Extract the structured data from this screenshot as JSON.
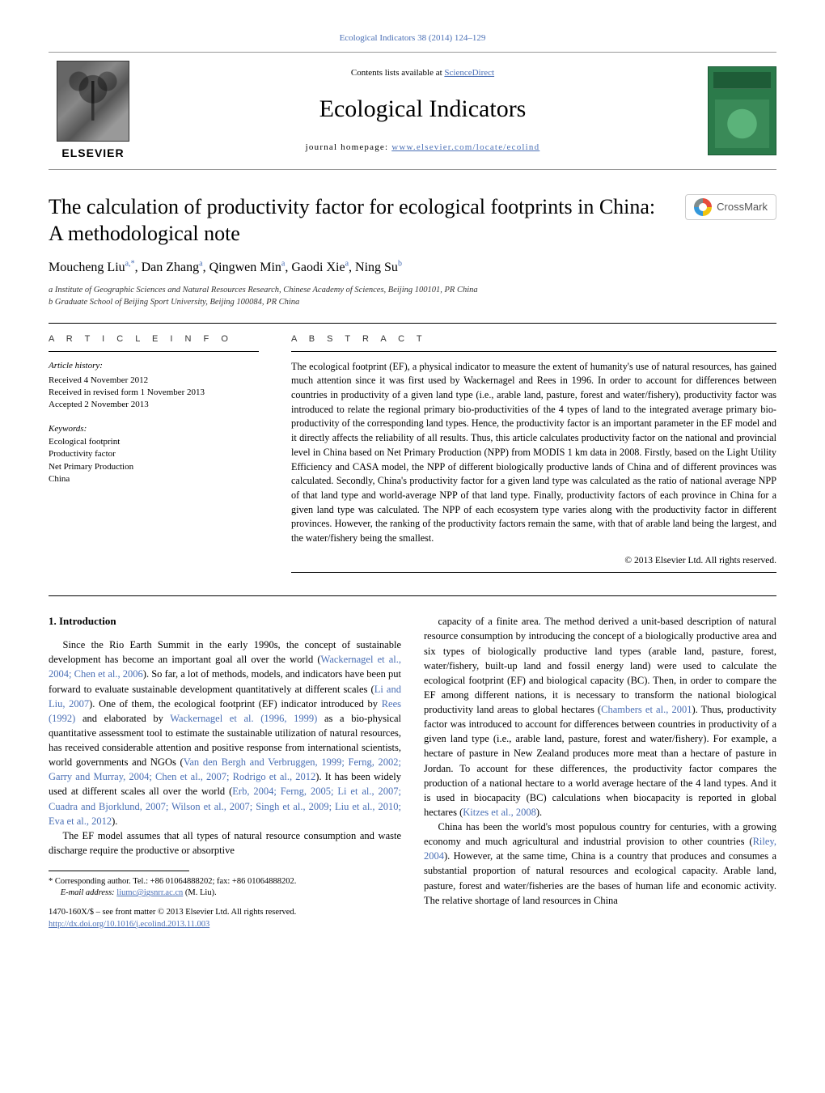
{
  "top_link": "Ecological Indicators 38 (2014) 124–129",
  "header": {
    "contents_prefix": "Contents lists available at ",
    "contents_link": "ScienceDirect",
    "journal_name": "Ecological Indicators",
    "homepage_prefix": "journal homepage: ",
    "homepage_link": "www.elsevier.com/locate/ecolind",
    "publisher": "ELSEVIER"
  },
  "crossmark_label": "CrossMark",
  "title": "The calculation of productivity factor for ecological footprints in China: A methodological note",
  "authors_html": "Moucheng Liu<sup>a,*</sup>, Dan Zhang<sup>a</sup>, Qingwen Min<sup>a</sup>, Gaodi Xie<sup>a</sup>, Ning Su<sup>b</sup>",
  "affiliations": [
    "a Institute of Geographic Sciences and Natural Resources Research, Chinese Academy of Sciences, Beijing 100101, PR China",
    "b Graduate School of Beijing Sport University, Beijing 100084, PR China"
  ],
  "info_label": "A R T I C L E   I N F O",
  "abstract_label": "A B S T R A C T",
  "history_label": "Article history:",
  "history": [
    "Received 4 November 2012",
    "Received in revised form 1 November 2013",
    "Accepted 2 November 2013"
  ],
  "keywords_label": "Keywords:",
  "keywords": [
    "Ecological footprint",
    "Productivity factor",
    "Net Primary Production",
    "China"
  ],
  "abstract": "The ecological footprint (EF), a physical indicator to measure the extent of humanity's use of natural resources, has gained much attention since it was first used by Wackernagel and Rees in 1996. In order to account for differences between countries in productivity of a given land type (i.e., arable land, pasture, forest and water/fishery), productivity factor was introduced to relate the regional primary bio-productivities of the 4 types of land to the integrated average primary bio-productivity of the corresponding land types. Hence, the productivity factor is an important parameter in the EF model and it directly affects the reliability of all results. Thus, this article calculates productivity factor on the national and provincial level in China based on Net Primary Production (NPP) from MODIS 1 km data in 2008. Firstly, based on the Light Utility Efficiency and CASA model, the NPP of different biologically productive lands of China and of different provinces was calculated. Secondly, China's productivity factor for a given land type was calculated as the ratio of national average NPP of that land type and world-average NPP of that land type. Finally, productivity factors of each province in China for a given land type was calculated. The NPP of each ecosystem type varies along with the productivity factor in different provinces. However, the ranking of the productivity factors remain the same, with that of arable land being the largest, and the water/fishery being the smallest.",
  "copyright": "© 2013 Elsevier Ltd. All rights reserved.",
  "intro_heading": "1. Introduction",
  "body": {
    "p1a": "Since the Rio Earth Summit in the early 1990s, the concept of sustainable development has become an important goal all over the world (",
    "c1": "Wackernagel et al., 2004; Chen et al., 2006",
    "p1b": "). So far, a lot of methods, models, and indicators have been put forward to evaluate sustainable development quantitatively at different scales (",
    "c2": "Li and Liu, 2007",
    "p1c": "). One of them, the ecological footprint (EF) indicator introduced by ",
    "c3": "Rees (1992)",
    "p1d": " and elaborated by ",
    "c4": "Wackernagel et al. (1996, 1999)",
    "p1e": " as a bio-physical quantitative assessment tool to estimate the sustainable utilization of natural resources, has received considerable attention and positive response from international scientists, world governments and NGOs (",
    "c5": "Van den Bergh and Verbruggen, 1999; Ferng, 2002; Garry and Murray, 2004; Chen et al., 2007; Rodrigo et al., 2012",
    "p1f": "). It has been widely used at different scales all over the world (",
    "c6": "Erb, 2004; Ferng, 2005; Li et al., 2007; Cuadra and Bjorklund, 2007; Wilson et al., 2007; Singh et al., 2009; Liu et al., 2010; Eva et al., 2012",
    "p1g": ").",
    "p2": "The EF model assumes that all types of natural resource consumption and waste discharge require the productive or absorptive",
    "p3a": "capacity of a finite area. The method derived a unit-based description of natural resource consumption by introducing the concept of a biologically productive area and six types of biologically productive land types (arable land, pasture, forest, water/fishery, built-up land and fossil energy land) were used to calculate the ecological footprint (EF) and biological capacity (BC). Then, in order to compare the EF among different nations, it is necessary to transform the national biological productivity land areas to global hectares (",
    "c7": "Chambers et al., 2001",
    "p3b": "). Thus, productivity factor was introduced to account for differences between countries in productivity of a given land type (i.e., arable land, pasture, forest and water/fishery). For example, a hectare of pasture in New Zealand produces more meat than a hectare of pasture in Jordan. To account for these differences, the productivity factor compares the production of a national hectare to a world average hectare of the 4 land types. And it is used in biocapacity (BC) calculations when biocapacity is reported in global hectares (",
    "c8": "Kitzes et al., 2008",
    "p3c": ").",
    "p4a": "China has been the world's most populous country for centuries, with a growing economy and much agricultural and industrial provision to other countries (",
    "c9": "Riley, 2004",
    "p4b": "). However, at the same time, China is a country that produces and consumes a substantial proportion of natural resources and ecological capacity. Arable land, pasture, forest and water/fisheries are the bases of human life and economic activity. The relative shortage of land resources in China"
  },
  "footnote": {
    "star": "* Corresponding author. Tel.: +86 01064888202; fax: +86 01064888202.",
    "email_label": "E-mail address: ",
    "email": "liumc@igsnrr.ac.cn",
    "email_suffix": " (M. Liu)."
  },
  "footer": {
    "line1": "1470-160X/$ – see front matter © 2013 Elsevier Ltd. All rights reserved.",
    "doi": "http://dx.doi.org/10.1016/j.ecolind.2013.11.003"
  }
}
